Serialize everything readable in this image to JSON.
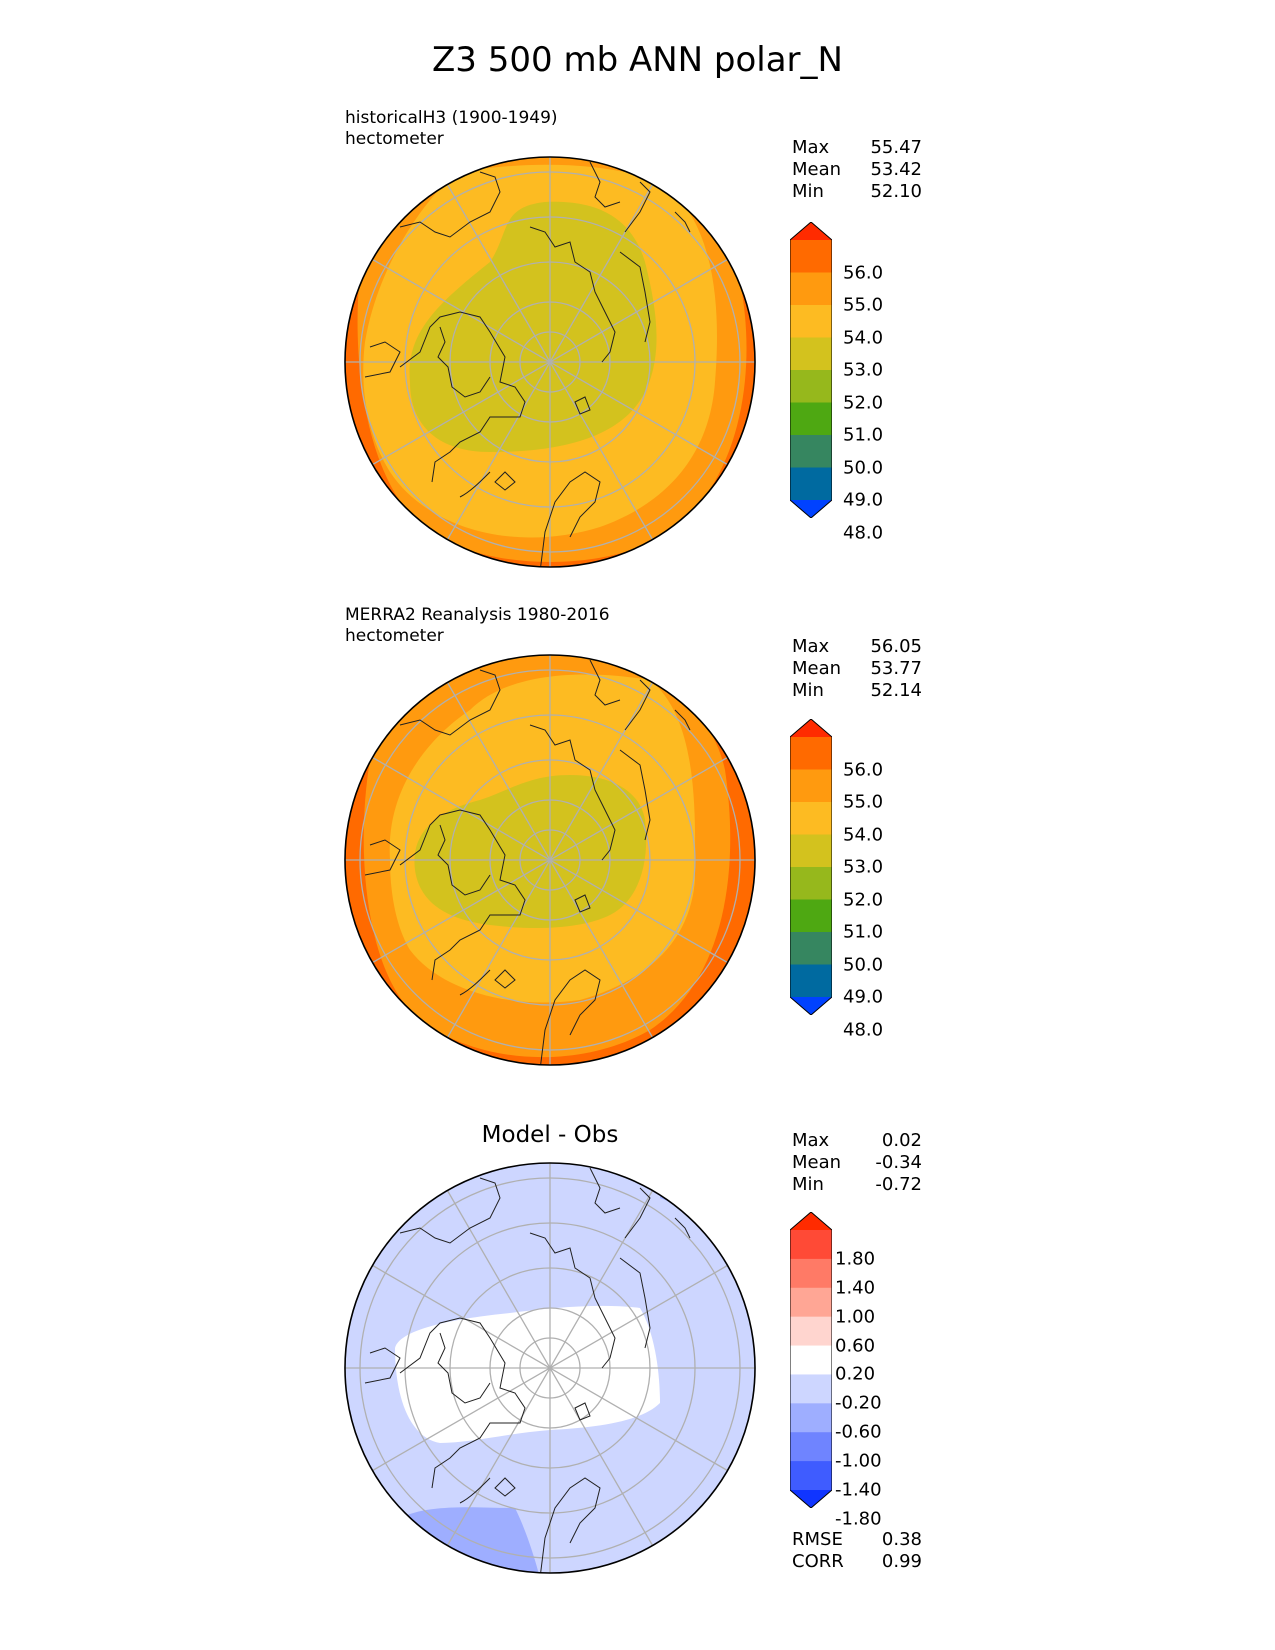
{
  "title": "Z3 500 mb ANN polar_N",
  "panels": [
    {
      "subtitle1": "historicalH3 (1900-1949)",
      "subtitle2": "hectometer",
      "stats": [
        {
          "label": "Max",
          "value": "55.47"
        },
        {
          "label": "Mean",
          "value": "53.42"
        },
        {
          "label": "Min",
          "value": "52.10"
        }
      ],
      "colorbar": {
        "labels": [
          "56.0",
          "55.0",
          "54.0",
          "53.0",
          "52.0",
          "51.0",
          "50.0",
          "49.0",
          "48.0"
        ],
        "colors": [
          "#ff2b00",
          "#ff6a00",
          "#ff9a0f",
          "#fdbb22",
          "#d3c21e",
          "#96b81c",
          "#4ea812",
          "#368660",
          "#006aa0",
          "#0042ff"
        ]
      },
      "field_colors": {
        "outer": "#ff6a00",
        "ring2": "#ff9a0f",
        "ring3": "#fdbb22",
        "core": "#d3c21e"
      }
    },
    {
      "subtitle1": "MERRA2 Reanalysis 1980-2016",
      "subtitle2": "hectometer",
      "stats": [
        {
          "label": "Max",
          "value": "56.05"
        },
        {
          "label": "Mean",
          "value": "53.77"
        },
        {
          "label": "Min",
          "value": "52.14"
        }
      ],
      "colorbar": {
        "labels": [
          "56.0",
          "55.0",
          "54.0",
          "53.0",
          "52.0",
          "51.0",
          "50.0",
          "49.0",
          "48.0"
        ],
        "colors": [
          "#ff2b00",
          "#ff6a00",
          "#ff9a0f",
          "#fdbb22",
          "#d3c21e",
          "#96b81c",
          "#4ea812",
          "#368660",
          "#006aa0",
          "#0042ff"
        ]
      },
      "field_colors": {
        "outer": "#ff6a00",
        "ring2": "#ff9a0f",
        "ring3": "#fdbb22",
        "core": "#d3c21e"
      }
    },
    {
      "center_title": "Model - Obs",
      "stats": [
        {
          "label": "Max",
          "value": "0.02"
        },
        {
          "label": "Mean",
          "value": "-0.34"
        },
        {
          "label": "Min",
          "value": "-0.72"
        }
      ],
      "colorbar": {
        "labels": [
          "1.80",
          "1.40",
          "1.00",
          "0.60",
          "0.20",
          "-0.20",
          "-0.60",
          "-1.00",
          "-1.40",
          "-1.80"
        ],
        "colors": [
          "#ff2b00",
          "#ff4a36",
          "#ff7a66",
          "#ffa695",
          "#ffd5cf",
          "#ffffff",
          "#cdd6ff",
          "#9eaeff",
          "#6f84ff",
          "#3f5cff",
          "#1035ff"
        ]
      },
      "field_colors": {
        "outer": "#cdd6ff",
        "core": "#ffffff",
        "low": "#9eaeff"
      },
      "metrics": [
        {
          "label": "RMSE",
          "value": "0.38"
        },
        {
          "label": "CORR",
          "value": "0.99"
        }
      ]
    }
  ]
}
